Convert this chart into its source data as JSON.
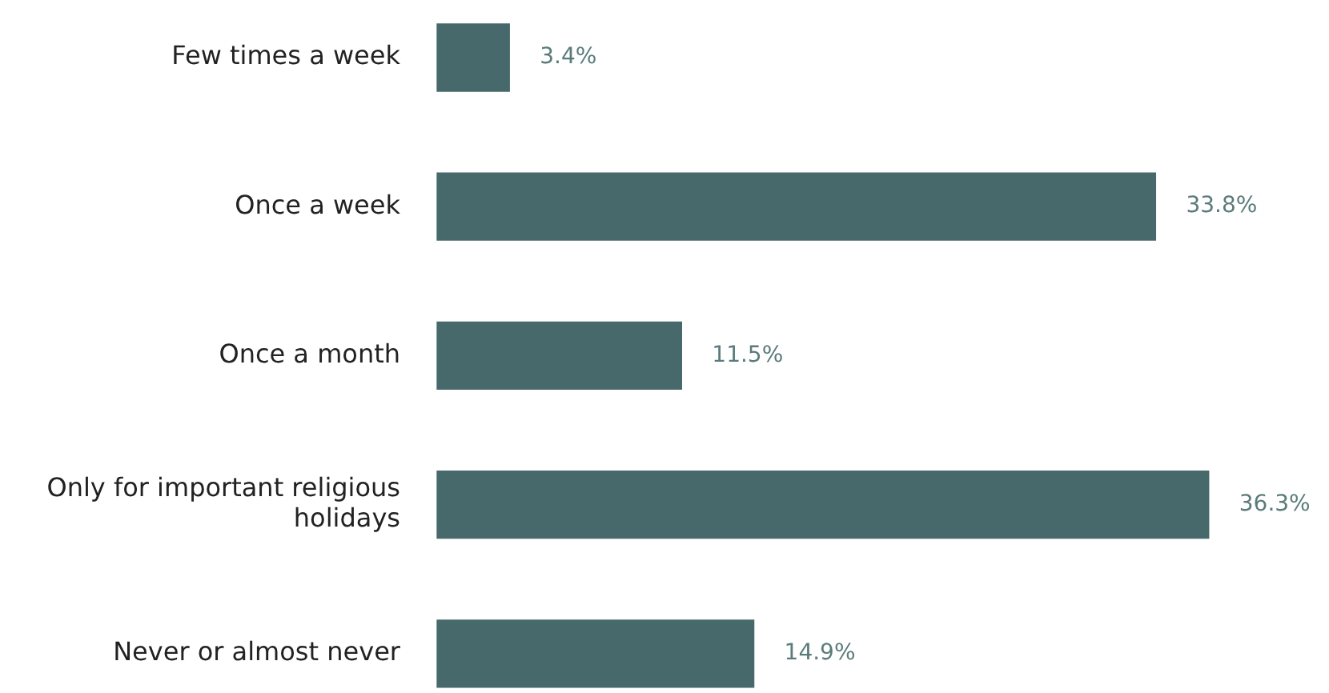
{
  "chart_data": {
    "type": "bar",
    "orientation": "horizontal",
    "categories": [
      "Few times a week",
      "Once a week",
      "Once a month",
      "Only for important religious holidays",
      "Never or almost never"
    ],
    "values": [
      3.4,
      33.8,
      11.5,
      36.3,
      14.9
    ],
    "value_labels": [
      "3.4%",
      "33.8%",
      "11.5%",
      "36.3%",
      "14.9%"
    ],
    "color": "#48696b",
    "tick_labels": "y"
  }
}
